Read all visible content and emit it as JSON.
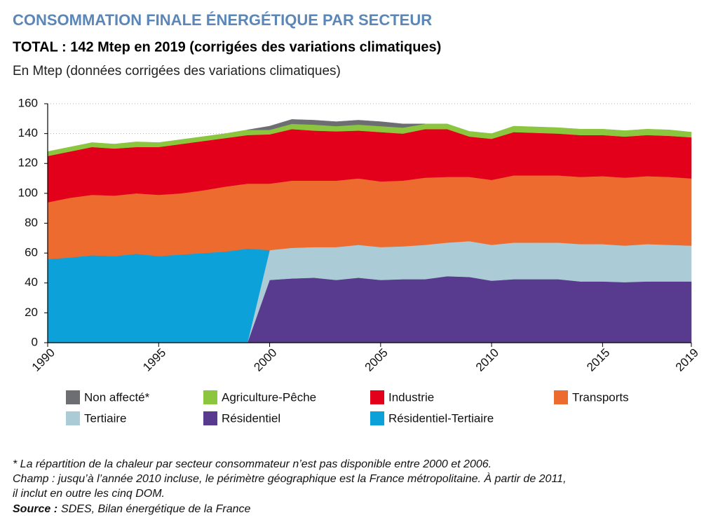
{
  "chart_data": {
    "type": "stacked_area",
    "title": "CONSOMMATION FINALE ÉNERGÉTIQUE PAR SECTEUR",
    "subtitle": "TOTAL : 142 Mtep en 2019 (corrigées des variations climatiques)",
    "y_label": "En Mtep (données corrigées des variations climatiques)",
    "x": [
      1990,
      1991,
      1992,
      1993,
      1994,
      1995,
      1996,
      1997,
      1998,
      1999,
      2000,
      2001,
      2002,
      2003,
      2004,
      2005,
      2006,
      2007,
      2008,
      2009,
      2010,
      2011,
      2012,
      2013,
      2014,
      2015,
      2016,
      2017,
      2018,
      2019
    ],
    "xlim": [
      1990,
      2019
    ],
    "xticks": [
      1990,
      1995,
      2000,
      2005,
      2010,
      2015,
      2019
    ],
    "ylim": [
      0,
      160
    ],
    "yticks": [
      0,
      20,
      40,
      60,
      80,
      100,
      120,
      140,
      160
    ],
    "grid": true,
    "series": [
      {
        "name": "Non affecté*",
        "color": "#6d6e71",
        "values": [
          null,
          null,
          null,
          null,
          null,
          null,
          null,
          null,
          null,
          null,
          2.5,
          3,
          3,
          3,
          3,
          3,
          2.5,
          null,
          null,
          null,
          null,
          null,
          null,
          null,
          null,
          null,
          null,
          null,
          null,
          null
        ]
      },
      {
        "name": "Agriculture-Pêche",
        "color": "#8cc63f",
        "values": [
          3,
          3,
          3,
          3,
          3.5,
          3,
          3,
          3,
          3,
          3.5,
          3,
          3.5,
          4,
          3.5,
          4,
          4,
          4,
          3.5,
          3.5,
          3.5,
          3.5,
          4,
          4,
          4,
          4,
          4,
          4,
          4,
          4,
          3.5
        ]
      },
      {
        "name": "Industrie",
        "color": "#e3001b",
        "values": [
          31,
          31,
          32,
          31.5,
          31,
          32,
          33,
          33,
          32.5,
          32.5,
          33,
          34.5,
          33.5,
          33,
          32,
          33,
          31.5,
          32.5,
          32,
          27,
          27.5,
          29,
          28.5,
          28,
          28,
          27.5,
          27.5,
          27.5,
          27.5,
          27.5
        ]
      },
      {
        "name": "Transports",
        "color": "#ee6b2f",
        "values": [
          38,
          40,
          40.5,
          40.5,
          40.5,
          41,
          41,
          42,
          43.5,
          43.5,
          44.5,
          45,
          44.5,
          44.5,
          44.5,
          44,
          44,
          45,
          44,
          43,
          43.5,
          45,
          45,
          45,
          45,
          45.5,
          45.5,
          45.5,
          45.5,
          45
        ]
      },
      {
        "name": "Tertiaire",
        "color": "#abcbd6",
        "values": [
          null,
          null,
          null,
          null,
          null,
          null,
          null,
          null,
          null,
          null,
          20,
          20.5,
          20.5,
          22,
          22,
          22,
          22,
          23,
          22.5,
          24,
          24,
          24.5,
          24.5,
          24.5,
          25,
          25,
          24.5,
          25,
          24.5,
          24
        ]
      },
      {
        "name": "Résidentiel",
        "color": "#583b8f",
        "values": [
          null,
          null,
          null,
          null,
          null,
          null,
          null,
          null,
          null,
          null,
          42,
          43,
          43.5,
          42,
          43.5,
          42,
          42.5,
          42.5,
          44.5,
          44,
          41.5,
          42.5,
          42.5,
          42.5,
          41,
          41,
          40.5,
          41,
          41,
          41
        ]
      },
      {
        "name": "Résidentiel-Tertiaire",
        "color": "#0ca2d9",
        "values": [
          56,
          57,
          58.5,
          58,
          59.5,
          58,
          59,
          60,
          61,
          63,
          null,
          null,
          null,
          null,
          null,
          null,
          null,
          null,
          null,
          null,
          null,
          null,
          null,
          null,
          null,
          null,
          null,
          null,
          null,
          null
        ]
      }
    ],
    "notes": [
      "* La répartition de la chaleur par secteur consommateur n’est pas disponible entre 2000 et 2006.",
      "Champ : jusqu’à l’année 2010 incluse, le périmètre géographique est la France métropolitaine. À partir de 2011,",
      "il inclut en outre les cinq DOM."
    ],
    "source": {
      "label": "Source :",
      "text": "SDES, Bilan énergétique de la France"
    }
  }
}
